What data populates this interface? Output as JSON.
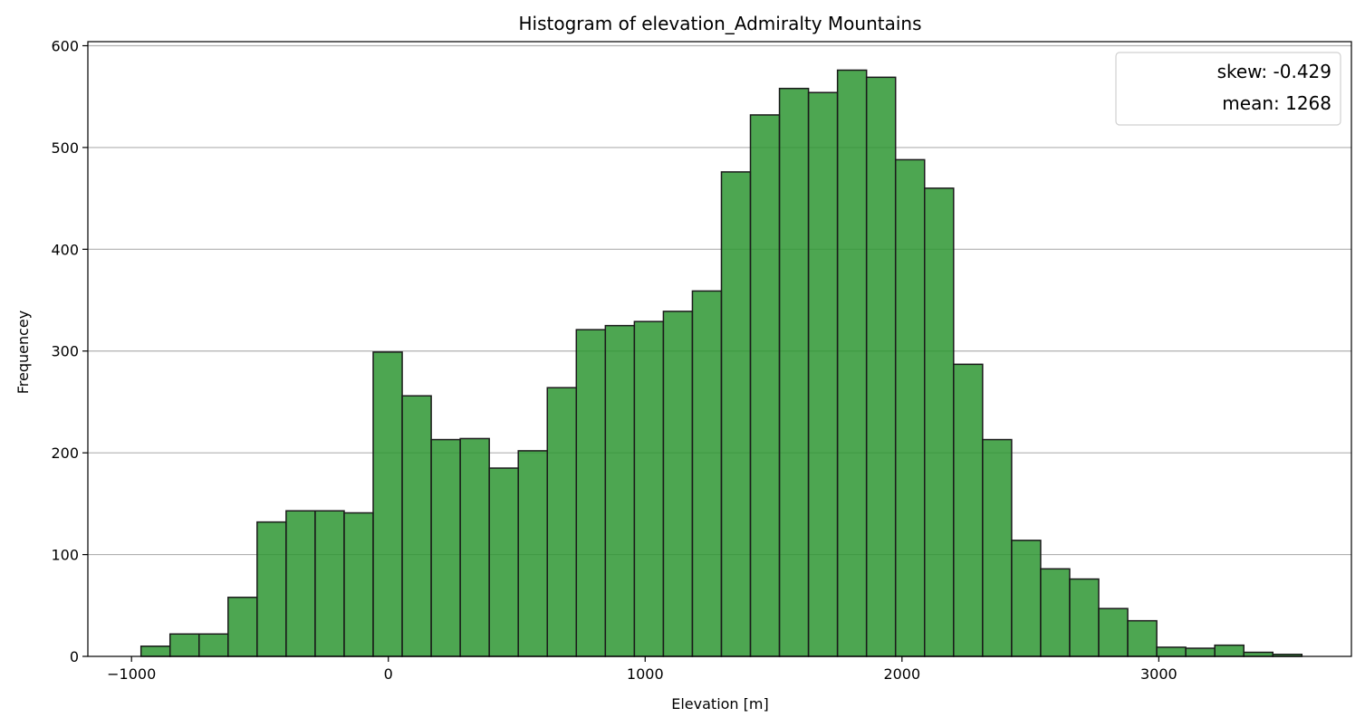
{
  "chart_data": {
    "type": "bar",
    "title": "Histogram of elevation_Admiralty Mountains",
    "xlabel": "Elevation [m]",
    "ylabel": "Frequencey",
    "xlim": [
      -1170,
      3750
    ],
    "ylim": [
      0,
      604
    ],
    "xticks": [
      -1000,
      0,
      1000,
      2000,
      3000
    ],
    "xtick_labels": [
      "−1000",
      "0",
      "1000",
      "2000",
      "3000"
    ],
    "yticks": [
      0,
      100,
      200,
      300,
      400,
      500,
      600
    ],
    "ytick_labels": [
      "0",
      "100",
      "200",
      "300",
      "400",
      "500",
      "600"
    ],
    "grid": "y",
    "bin_edges": [
      -963,
      -850,
      -737,
      -624,
      -511,
      -398,
      -285,
      -172,
      -59,
      54,
      167,
      280,
      393,
      506,
      619,
      732,
      845,
      958,
      1071,
      1184,
      1297,
      1410,
      1523,
      1636,
      1749,
      1862,
      1975,
      2088,
      2201,
      2314,
      2427,
      2540,
      2653,
      2766,
      2879,
      2992,
      3105,
      3218,
      3331,
      3444,
      3557
    ],
    "values": [
      10,
      22,
      22,
      58,
      132,
      143,
      143,
      141,
      299,
      256,
      213,
      214,
      185,
      202,
      264,
      321,
      325,
      329,
      339,
      359,
      476,
      532,
      558,
      554,
      576,
      569,
      488,
      460,
      287,
      213,
      114,
      86,
      76,
      47,
      35,
      9,
      8,
      11,
      4,
      2
    ],
    "bar_color": "#2e9632",
    "bar_edge_color": "#1a1a1a",
    "legend": {
      "position": "top-right",
      "entries": [
        "skew: -0.429",
        "mean: 1268"
      ]
    }
  }
}
